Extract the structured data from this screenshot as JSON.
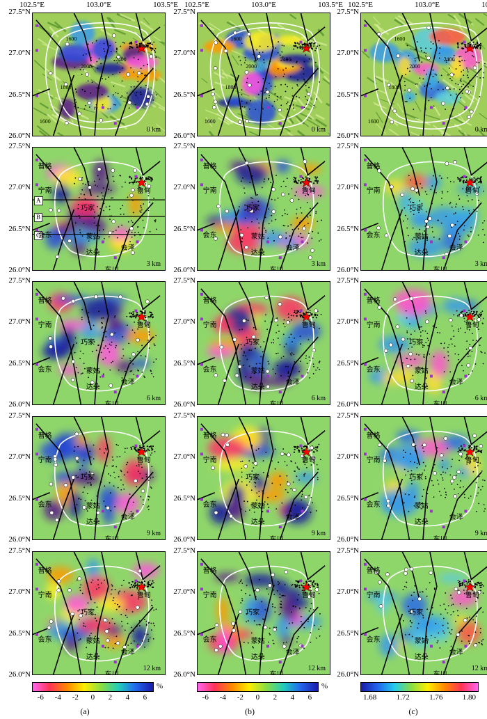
{
  "lon_ticks": [
    "102.5°E",
    "103.0°E",
    "103.5°E"
  ],
  "lat_ticks": [
    "27.5°N",
    "27.0°N",
    "26.5°N",
    "26.0°N"
  ],
  "depths": [
    "0 km",
    "3 km",
    "6 km",
    "9 km",
    "12 km"
  ],
  "columns": [
    "(a)",
    "(b)",
    "(c)"
  ],
  "cities": {
    "puge": "普格",
    "ningnan": "宁南",
    "qiaojia": "巧家",
    "huidong": "会东",
    "menggu": "蒙姑",
    "daduo": "达朵",
    "huize": "会泽",
    "dongchuan": "东川",
    "ludian": "鲁甸"
  },
  "contour_labels": [
    "1600",
    "1800",
    "2000",
    "2400",
    "1800",
    "1600"
  ],
  "profile_letters": [
    "A",
    "B",
    "C"
  ],
  "colorbars": [
    {
      "ticks": [
        "-6",
        "-4",
        "-2",
        "0",
        "2",
        "4",
        "6"
      ],
      "unit": "%",
      "colors": [
        "#ff66ee",
        "#ff3355",
        "#ff8800",
        "#ffee00",
        "#88dd44",
        "#22ccbb",
        "#2266ee",
        "#1a1aaa"
      ]
    },
    {
      "ticks": [
        "-6",
        "-4",
        "-2",
        "0",
        "2",
        "4",
        "6"
      ],
      "unit": "%",
      "colors": [
        "#ff66ee",
        "#ff3355",
        "#ff8800",
        "#ffee00",
        "#88dd44",
        "#22ccbb",
        "#2266ee",
        "#1a1aaa"
      ]
    },
    {
      "ticks": [
        "1.68",
        "1.72",
        "1.76",
        "1.80"
      ],
      "unit": "",
      "colors": [
        "#1a1aaa",
        "#2266ee",
        "#22ccee",
        "#88dd44",
        "#ffee00",
        "#ff8800",
        "#ff3355",
        "#ff66ee"
      ]
    }
  ]
}
